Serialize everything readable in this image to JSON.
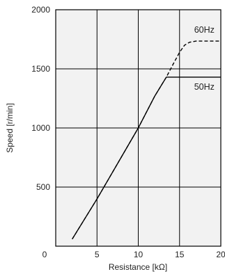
{
  "chart_data": {
    "type": "line",
    "xlabel": "Resistance [kΩ]",
    "ylabel": "Speed [r/min]",
    "xlim": [
      0,
      20
    ],
    "ylim": [
      0,
      2000
    ],
    "x_ticks": [
      0,
      5,
      10,
      15,
      20
    ],
    "y_ticks": [
      500,
      1000,
      1500,
      2000
    ],
    "grid": true,
    "background": "#f2f2f2",
    "series": [
      {
        "name": "60Hz",
        "line_style": "dashed",
        "color": "#000000",
        "points": [
          [
            2,
            60
          ],
          [
            5,
            400
          ],
          [
            7.5,
            700
          ],
          [
            10,
            1000
          ],
          [
            12,
            1270
          ],
          [
            13.4,
            1430
          ],
          [
            14.3,
            1550
          ],
          [
            15,
            1640
          ],
          [
            15.6,
            1700
          ],
          [
            16.2,
            1725
          ],
          [
            17,
            1735
          ],
          [
            20,
            1735
          ]
        ]
      },
      {
        "name": "50Hz",
        "line_style": "solid",
        "color": "#000000",
        "points": [
          [
            2,
            60
          ],
          [
            5,
            400
          ],
          [
            7.5,
            700
          ],
          [
            10,
            1000
          ],
          [
            12,
            1270
          ],
          [
            13.4,
            1430
          ],
          [
            20,
            1430
          ]
        ]
      }
    ]
  }
}
